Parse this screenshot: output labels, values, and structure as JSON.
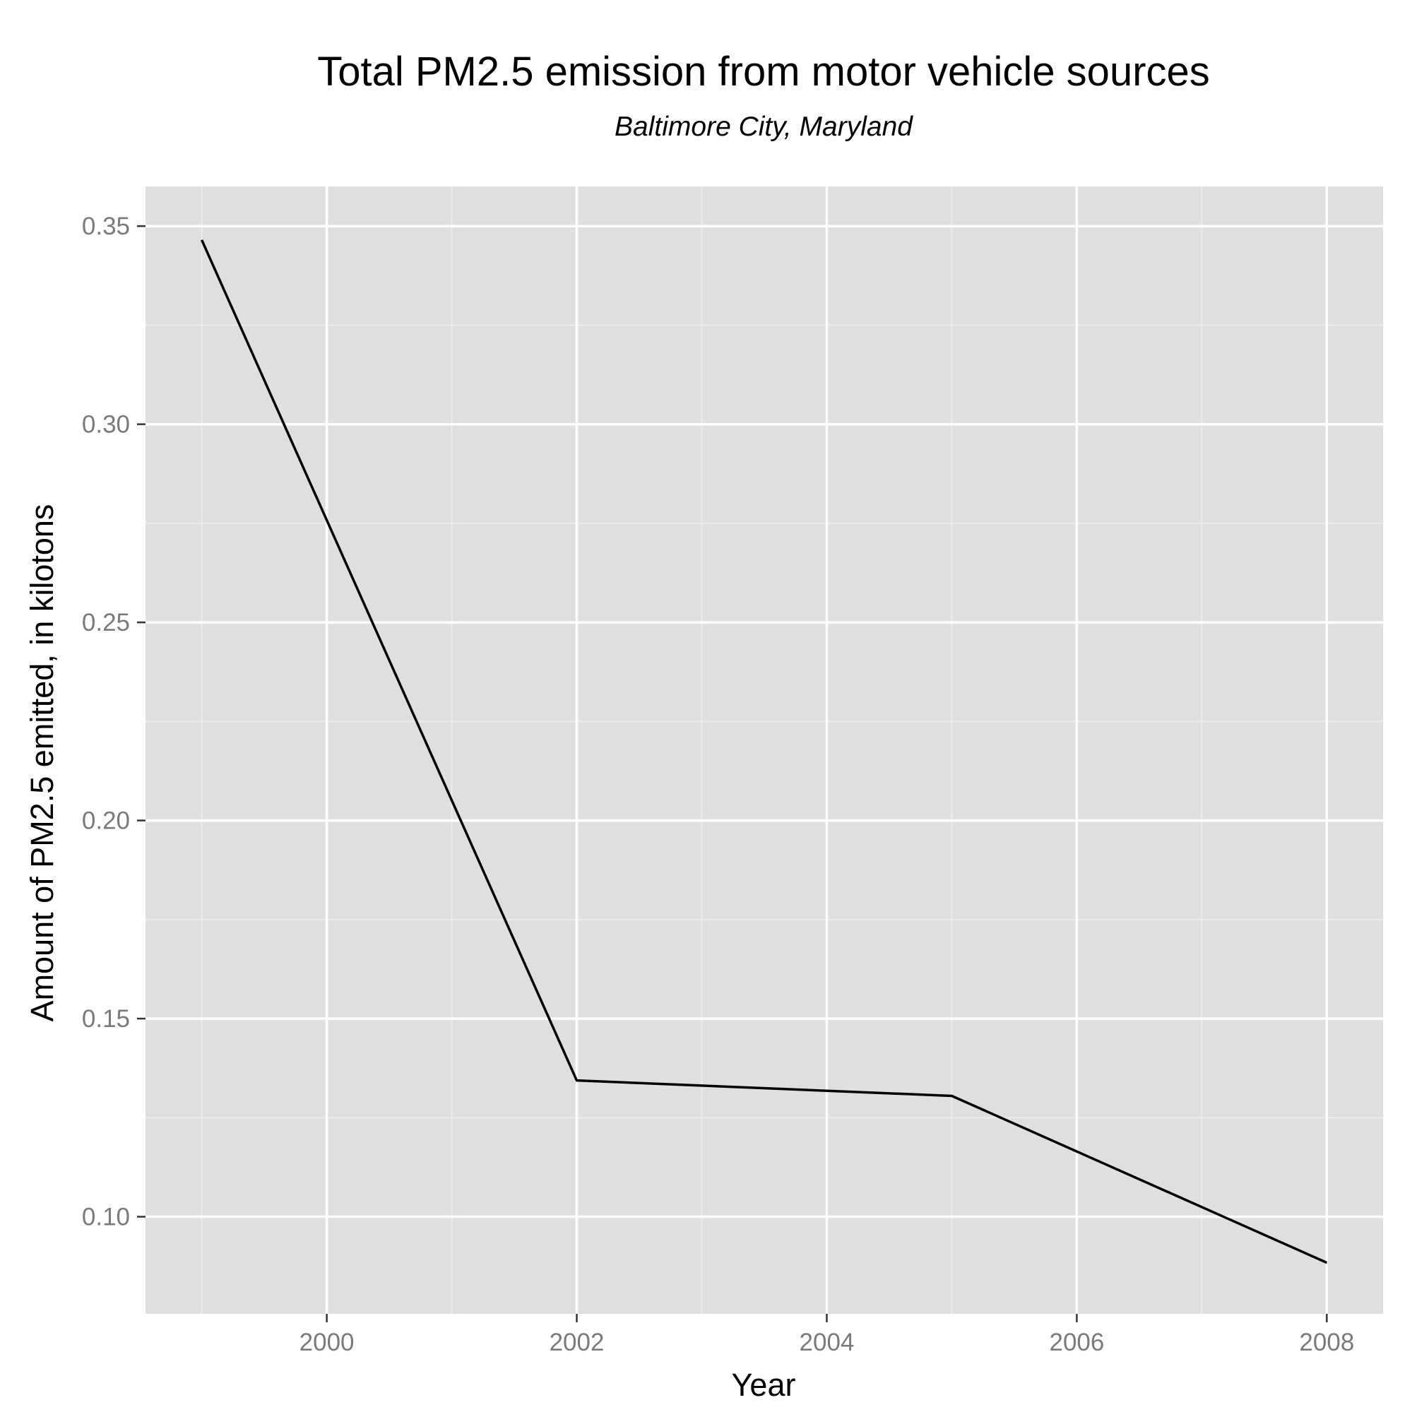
{
  "chart_data": {
    "type": "line",
    "title": "Total PM2.5 emission from motor vehicle sources",
    "subtitle": "Baltimore City, Maryland",
    "xlabel": "Year",
    "ylabel": "Amount of PM2.5 emitted, in kilotons",
    "x": [
      1999,
      2002,
      2005,
      2008
    ],
    "series": [
      {
        "values": [
          0.3465,
          0.1344,
          0.1305,
          0.0884
        ]
      }
    ],
    "xlim": [
      1998.55,
      2008.45
    ],
    "ylim": [
      0.0755,
      0.36
    ],
    "xticks": [
      2000,
      2002,
      2004,
      2006,
      2008
    ],
    "xtick_labels": [
      "2000",
      "2002",
      "2004",
      "2006",
      "2008"
    ],
    "yticks": [
      0.1,
      0.15,
      0.2,
      0.25,
      0.3,
      0.35
    ],
    "ytick_labels": [
      "0.10",
      "0.15",
      "0.20",
      "0.25",
      "0.30",
      "0.35"
    ],
    "grid": true,
    "legend": "none",
    "colors": {
      "panel_background": "#dfdfdf",
      "grid_major": "#ffffff",
      "grid_minor": "#ececec",
      "line": "#000000",
      "tick_text": "#7a7a7a"
    }
  }
}
